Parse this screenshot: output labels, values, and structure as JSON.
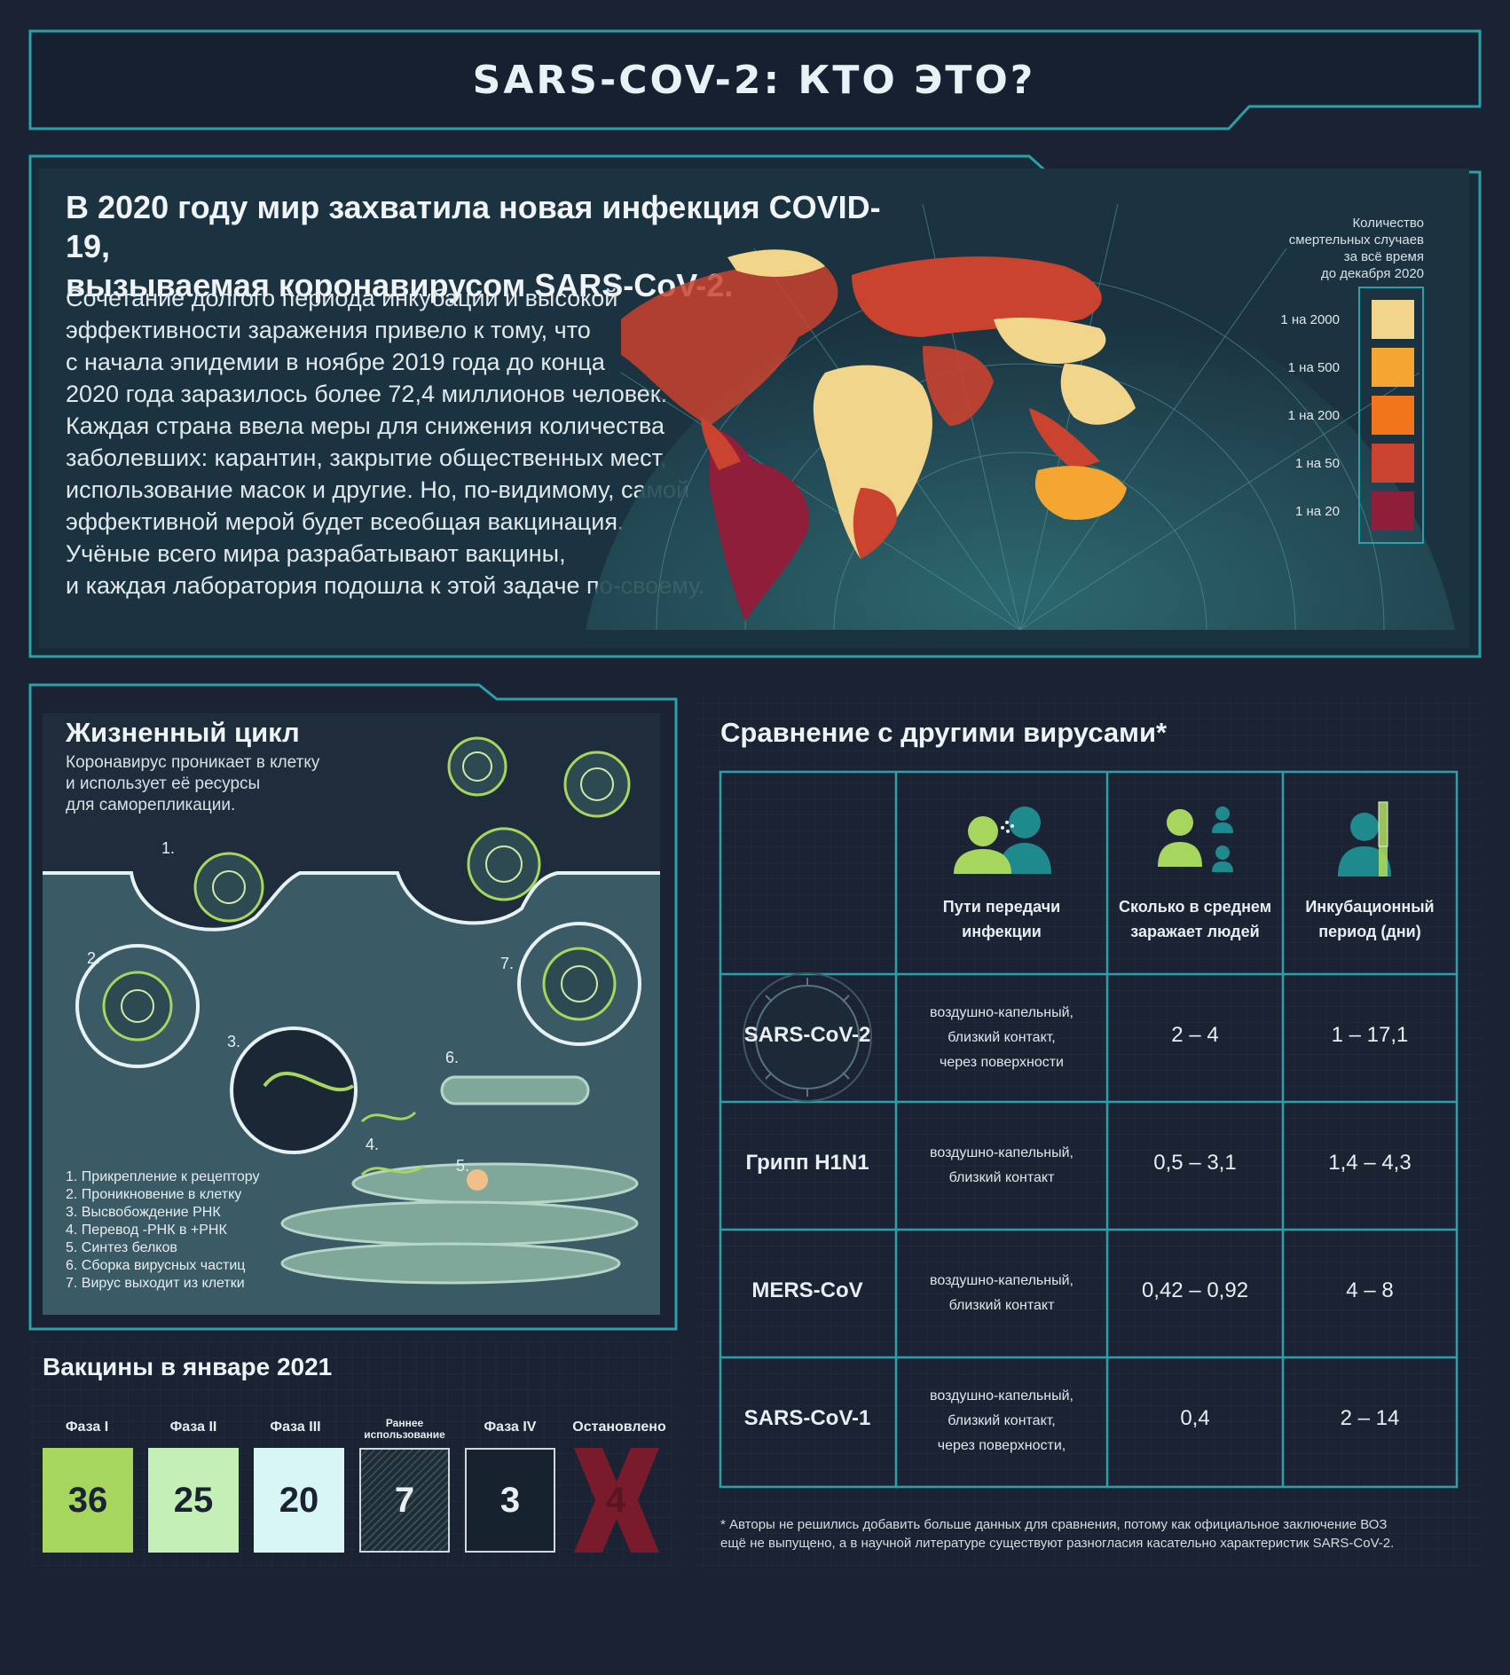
{
  "header": {
    "title": "SARS-COV-2: КТО ЭТО?"
  },
  "intro": {
    "heading_lines": [
      "В 2020 году мир захватила новая инфекция COVID-19,",
      "вызываемая коронавирусом SARS-CoV-2."
    ],
    "body_lines": [
      "Сочетание долгого периода инкубации и высокой",
      "эффективности заражения привело к тому, что",
      "с начала эпидемии в ноябре 2019 года до конца",
      "2020 года заразилось более 72,4 миллионов человек.",
      "Каждая страна ввела меры для снижения количества",
      "заболевших: карантин, закрытие общественных мест,",
      "использование масок и другие. Но, по-видимому, самой",
      "эффективной мерой будет всеобщая вакцинация.",
      "Учёные всего мира разрабатывают вакцины,",
      "и каждая лаборатория подошла к этой задаче по-своему."
    ]
  },
  "map_legend": {
    "title_lines": [
      "Количество",
      "смертельных случаев",
      "за всё время",
      "до декабря 2020"
    ],
    "items": [
      {
        "label": "1 на 2000",
        "color": "#f0d58a"
      },
      {
        "label": "1 на 500",
        "color": "#f5a531"
      },
      {
        "label": "1 на 200",
        "color": "#f2741b"
      },
      {
        "label": "1 на 50",
        "color": "#c9432f"
      },
      {
        "label": "1 на 20",
        "color": "#8f1e3a"
      }
    ]
  },
  "lifecycle": {
    "title": "Жизненный цикл",
    "subtitle_lines": [
      "Коронавирус проникает в клетку",
      "и использует её ресурсы",
      "для саморепликации."
    ],
    "step_numbers": [
      "1.",
      "2.",
      "3.",
      "4.",
      "5.",
      "6.",
      "7."
    ],
    "steps": [
      "1. Прикрепление к рецептору",
      "2. Проникновение в клетку",
      "3. Высвобождение РНК",
      "4. Перевод -РНК в +РНК",
      "5. Синтез белков",
      "6. Сборка вирусных частиц",
      "7. Вирус выходит из клетки"
    ]
  },
  "vaccines": {
    "title": "Вакцины в январе 2021",
    "phases": [
      {
        "label": "Фаза I",
        "value": "36",
        "color": "#a7d65e"
      },
      {
        "label": "Фаза II",
        "value": "25",
        "color": "#c4efb6"
      },
      {
        "label": "Фаза III",
        "value": "20",
        "color": "#d8f6f6"
      },
      {
        "label": "Раннее использование",
        "value": "7",
        "color": "#2b3f47"
      },
      {
        "label": "Фаза IV",
        "value": "3",
        "color": "#16222e"
      },
      {
        "label": "Остановлено",
        "value": "4",
        "color": "#7a1b2c"
      }
    ]
  },
  "comparison": {
    "title": "Сравнение с другими вирусами*",
    "columns": [
      {
        "label_lines": [
          "Пути передачи",
          "инфекции"
        ],
        "icon": "transmission-icon"
      },
      {
        "label_lines": [
          "Сколько в среднем",
          "заражает людей"
        ],
        "icon": "people-icon"
      },
      {
        "label_lines": [
          "Инкубационный",
          "период (дни)"
        ],
        "icon": "incubation-icon"
      }
    ],
    "rows": [
      {
        "name": "SARS-CoV-2",
        "transmission": [
          "воздушно-капельный,",
          "близкий контакт,",
          "через поверхности"
        ],
        "r0": "2 – 4",
        "incubation": "1 – 17,1"
      },
      {
        "name": "Грипп H1N1",
        "transmission": [
          "воздушно-капельный,",
          "близкий контакт"
        ],
        "r0": "0,5 – 3,1",
        "incubation": "1,4 – 4,3"
      },
      {
        "name": "MERS-CoV",
        "transmission": [
          "воздушно-капельный,",
          "близкий контакт"
        ],
        "r0": "0,42 – 0,92",
        "incubation": "4 – 8"
      },
      {
        "name": "SARS-CoV-1",
        "transmission": [
          "воздушно-капельный,",
          "близкий контакт,",
          "через поверхности,"
        ],
        "r0": "0,4",
        "incubation": "2 – 14"
      }
    ],
    "footnote_lines": [
      "* Авторы не решились добавить больше данных для сравнения, потому как официальное заключение ВОЗ",
      "ещё не выпущено, а в научной литературе существуют разногласия касательно характеристик SARS-CoV-2."
    ]
  },
  "colors": {
    "frame": "#2aa0a8",
    "background": "#1a2233",
    "accent_green": "#a7d65e"
  }
}
